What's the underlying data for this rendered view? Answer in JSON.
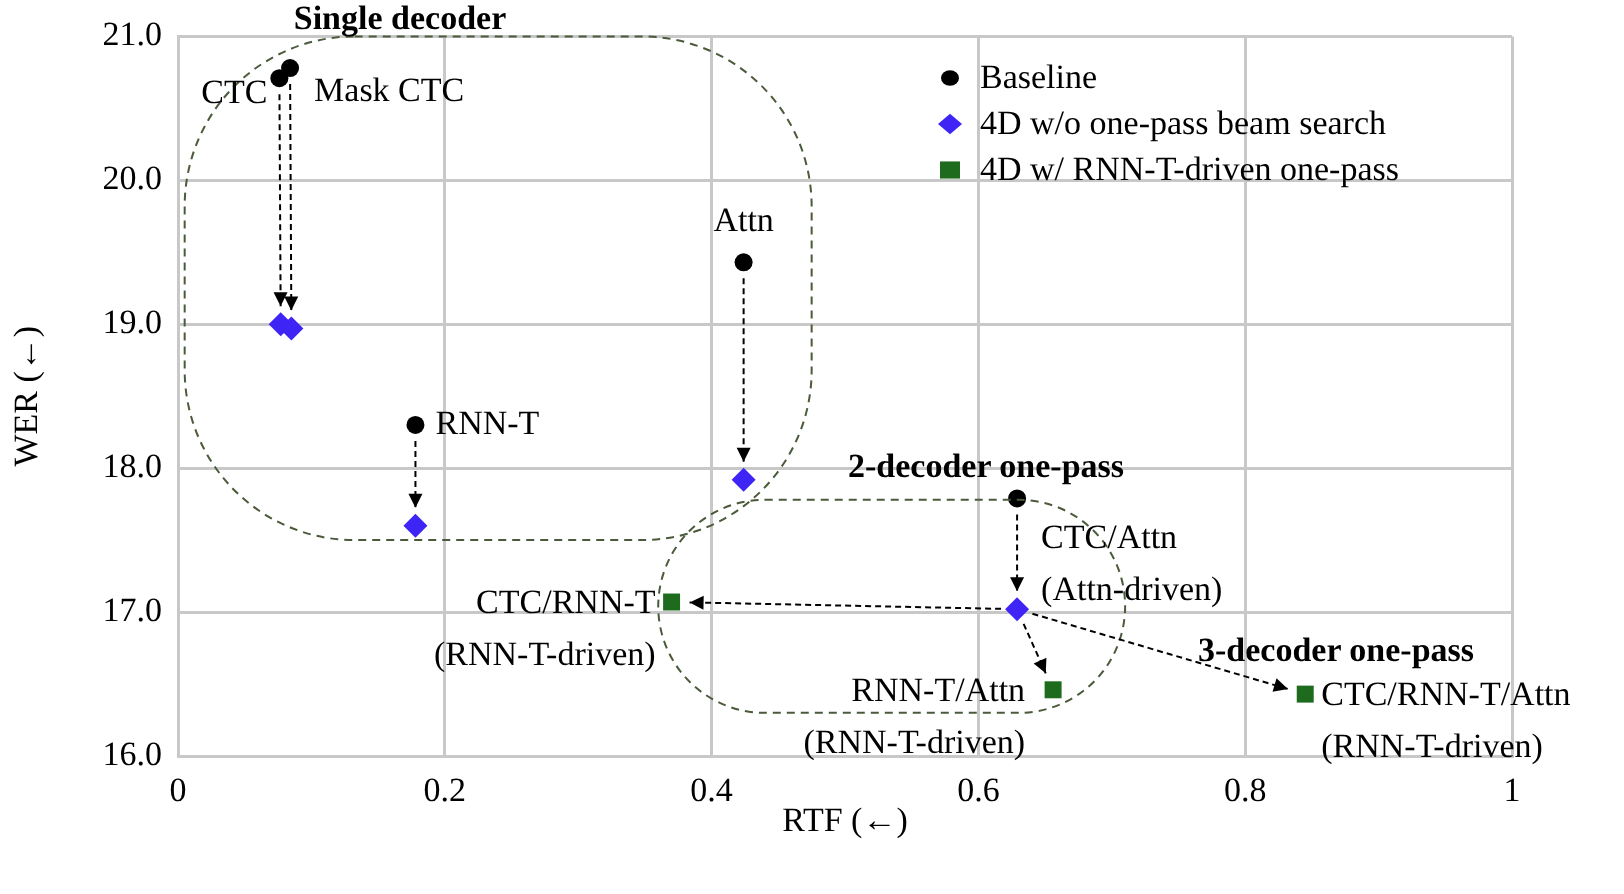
{
  "chart_data": {
    "type": "scatter",
    "xlabel": "RTF (←)",
    "ylabel": "WER (←)",
    "xlim": [
      0,
      1
    ],
    "xticks": [
      0,
      0.2,
      0.4,
      0.6,
      0.8,
      1
    ],
    "ylim": [
      16,
      21
    ],
    "yticks": [
      {
        "value": 16,
        "label": "16.0"
      },
      {
        "value": 17,
        "label": "17.0"
      },
      {
        "value": 18,
        "label": "18.0"
      },
      {
        "value": 19,
        "label": "19.0"
      },
      {
        "value": 20,
        "label": "20.0"
      },
      {
        "value": 21,
        "label": "21.0"
      }
    ],
    "grid": true,
    "legend": "top right",
    "series": [
      {
        "name": "Baseline",
        "color": "#000000",
        "marker": "circle",
        "x": [
          0.076,
          0.084,
          0.178,
          0.424,
          0.629
        ],
        "values": [
          20.71,
          20.78,
          18.3,
          19.43,
          17.79
        ]
      },
      {
        "name": "4D w/o one-pass beam search",
        "color": "#3f25f5",
        "marker": "diamond",
        "x": [
          0.077,
          0.085,
          0.178,
          0.424,
          0.629
        ],
        "values": [
          19.0,
          18.97,
          17.6,
          17.92,
          17.02
        ]
      },
      {
        "name": "4D w/ RNN-T-driven one-pass",
        "color": "#1e6b1e",
        "marker": "square",
        "x": [
          0.37,
          0.656,
          0.845
        ],
        "values": [
          17.07,
          16.46,
          16.43
        ]
      }
    ],
    "annotations": [
      {
        "text": "CTC",
        "x": 0.076,
        "y": 20.71
      },
      {
        "text": "Mask CTC",
        "x": 0.084,
        "y": 20.78
      },
      {
        "text": "RNN-T",
        "x": 0.178,
        "y": 18.3
      },
      {
        "text": "Attn",
        "x": 0.424,
        "y": 19.43
      },
      {
        "text": "CTC/Attn\n(Attn-driven)",
        "x": 0.629,
        "y": 17.02
      },
      {
        "text": "CTC/RNN-T\n(RNN-T-driven)",
        "x": 0.37,
        "y": 17.07
      },
      {
        "text": "RNN-T/Attn\n(RNN-T-driven)",
        "x": 0.656,
        "y": 16.46
      },
      {
        "text": "CTC/RNN-T/Attn\n(RNN-T-driven)",
        "x": 0.845,
        "y": 16.43
      },
      "Single decoder",
      "2-decoder one-pass",
      "3-decoder one-pass"
    ]
  }
}
